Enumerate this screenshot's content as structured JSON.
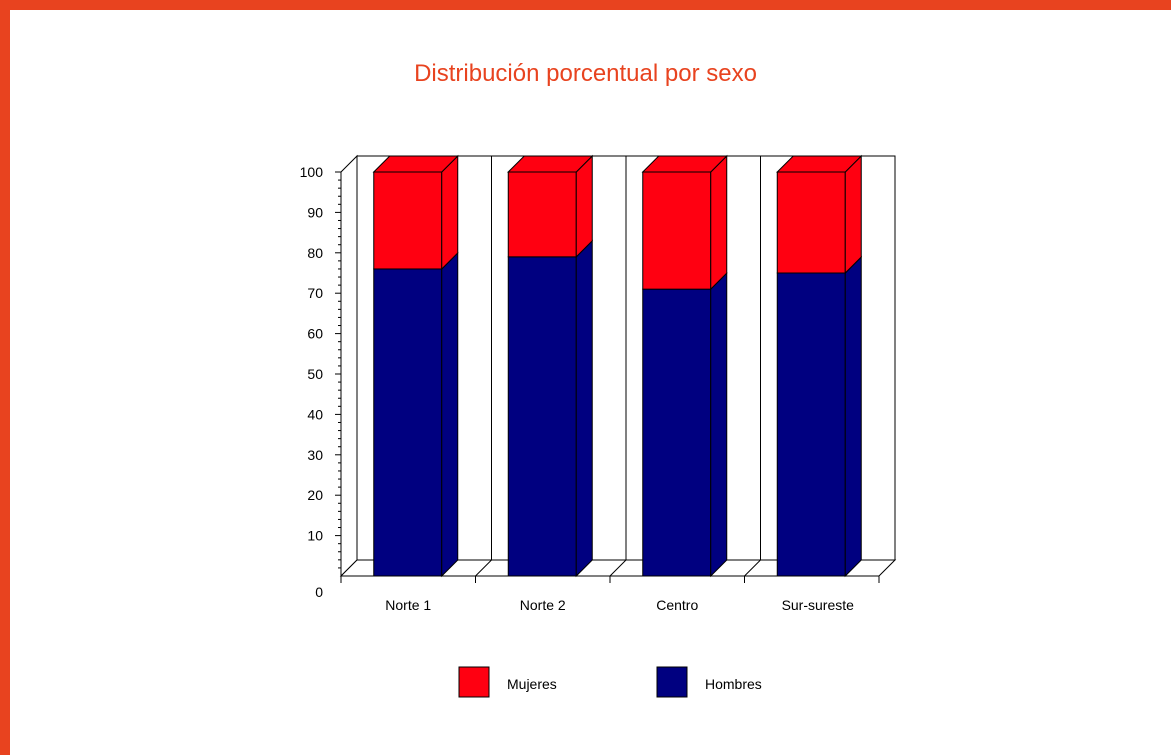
{
  "colors": {
    "accent": "#e8431f",
    "mujeres": "#ff0011",
    "hombres": "#000080"
  },
  "chart_data": {
    "type": "bar",
    "stacked": true,
    "title": "Distribución porcentual por sexo",
    "categories": [
      "Norte 1",
      "Norte 2",
      "Centro",
      "Sur-sureste"
    ],
    "series": [
      {
        "name": "Hombres",
        "values": [
          76,
          79,
          71,
          75
        ]
      },
      {
        "name": "Mujeres",
        "values": [
          24,
          21,
          29,
          25
        ]
      }
    ],
    "ylim": [
      0,
      100
    ],
    "yticks": [
      "0",
      "10",
      "20",
      "30",
      "40",
      "50",
      "60",
      "70",
      "80",
      "90",
      "100"
    ],
    "legend": {
      "position": "bottom",
      "entries": [
        "Mujeres",
        "Hombres"
      ]
    },
    "grid": false
  }
}
